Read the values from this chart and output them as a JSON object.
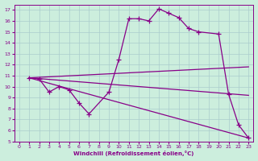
{
  "xlabel": "Windchill (Refroidissement éolien,°C)",
  "bg_color": "#cceedd",
  "line_color": "#880088",
  "grid_color": "#aacccc",
  "xlim": [
    -0.5,
    23.5
  ],
  "ylim": [
    5,
    17.5
  ],
  "xticks": [
    0,
    1,
    2,
    3,
    4,
    5,
    6,
    7,
    8,
    9,
    10,
    11,
    12,
    13,
    14,
    15,
    16,
    17,
    18,
    19,
    20,
    21,
    22,
    23
  ],
  "yticks": [
    5,
    6,
    7,
    8,
    9,
    10,
    11,
    12,
    13,
    14,
    15,
    16,
    17
  ],
  "main_x": [
    1,
    2,
    3,
    4,
    5,
    6,
    7,
    9,
    10,
    11,
    12,
    13,
    14,
    15,
    16,
    17,
    18,
    20,
    21,
    22,
    23
  ],
  "main_y": [
    10.8,
    10.7,
    9.5,
    10.0,
    9.7,
    8.5,
    7.5,
    9.5,
    12.5,
    16.2,
    16.2,
    16.0,
    17.1,
    16.7,
    16.3,
    15.3,
    15.0,
    14.8,
    9.3,
    6.5,
    5.3
  ],
  "line1_x": [
    1,
    23
  ],
  "line1_y": [
    10.8,
    5.3
  ],
  "line2_x": [
    1,
    23
  ],
  "line2_y": [
    10.8,
    11.8
  ],
  "line3_x": [
    1,
    23
  ],
  "line3_y": [
    10.8,
    9.2
  ]
}
